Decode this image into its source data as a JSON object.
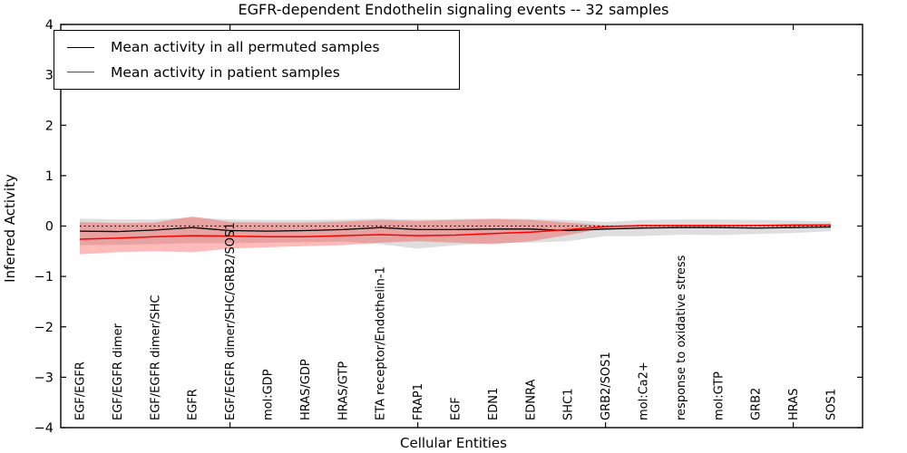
{
  "chart_data": {
    "type": "line",
    "title": "EGFR-dependent Endothelin signaling events -- 32 samples",
    "xlabel": "Cellular Entities",
    "ylabel": "Inferred Activity",
    "ylim": [
      -4,
      4
    ],
    "yticks": [
      4,
      3,
      2,
      1,
      0,
      -1,
      -2,
      -3,
      -4
    ],
    "grid": false,
    "legend_position": "upper-left",
    "zero_reference_line": 0,
    "categories": [
      "EGF/EGFR",
      "EGF/EGFR dimer",
      "EGF/EGFR dimer/SHC",
      "EGFR",
      "EGF/EGFR dimer/SHC/GRB2/SOS1",
      "mol:GDP",
      "HRAS/GDP",
      "HRAS/GTP",
      "ETA receptor/Endothelin-1",
      "FRAP1",
      "EGF",
      "EDN1",
      "EDNRA",
      "SHC1",
      "GRB2/SOS1",
      "mol:Ca2+",
      "response to oxidative stress",
      "mol:GTP",
      "GRB2",
      "HRAS",
      "SOS1"
    ],
    "x_tick_indexes": [
      4,
      9,
      14,
      19
    ],
    "series": [
      {
        "name": "Mean activity in all permuted samples",
        "color": "#000000",
        "values": [
          -0.1,
          -0.11,
          -0.08,
          -0.03,
          -0.09,
          -0.1,
          -0.09,
          -0.07,
          -0.03,
          -0.07,
          -0.07,
          -0.06,
          -0.06,
          -0.09,
          -0.06,
          -0.04,
          -0.03,
          -0.03,
          -0.04,
          -0.03,
          -0.02
        ]
      },
      {
        "name": "Mean activity in patient samples",
        "color": "#ff0000",
        "values": [
          -0.26,
          -0.24,
          -0.21,
          -0.19,
          -0.2,
          -0.21,
          -0.21,
          -0.19,
          -0.17,
          -0.19,
          -0.18,
          -0.15,
          -0.12,
          -0.07,
          -0.01,
          0.01,
          0.01,
          0.01,
          0.01,
          0.02,
          0.02
        ]
      }
    ],
    "bands": [
      {
        "name": "permuted-samples-std-band",
        "color": "rgba(0,0,0,0.13)",
        "upper": [
          0.15,
          0.13,
          0.13,
          0.17,
          0.13,
          0.12,
          0.12,
          0.13,
          0.15,
          0.13,
          0.14,
          0.15,
          0.14,
          0.12,
          0.08,
          0.12,
          0.13,
          0.13,
          0.12,
          0.11,
          0.09
        ],
        "lower": [
          -0.38,
          -0.37,
          -0.36,
          -0.34,
          -0.34,
          -0.33,
          -0.32,
          -0.31,
          -0.36,
          -0.45,
          -0.38,
          -0.34,
          -0.33,
          -0.3,
          -0.2,
          -0.2,
          -0.17,
          -0.18,
          -0.16,
          -0.14,
          -0.1
        ]
      },
      {
        "name": "patient-samples-std-band",
        "color": "rgba(255,0,0,0.27)",
        "upper": [
          0.08,
          0.06,
          0.07,
          0.19,
          0.08,
          0.07,
          0.07,
          0.09,
          0.12,
          0.1,
          0.12,
          0.14,
          0.12,
          0.07,
          0.01,
          0.02,
          0.02,
          0.02,
          0.02,
          0.03,
          0.04
        ],
        "lower": [
          -0.56,
          -0.52,
          -0.5,
          -0.52,
          -0.45,
          -0.42,
          -0.4,
          -0.38,
          -0.33,
          -0.3,
          -0.33,
          -0.36,
          -0.3,
          -0.18,
          -0.04,
          -0.02,
          -0.01,
          -0.01,
          -0.01,
          -0.01,
          0.0
        ]
      }
    ],
    "legend": [
      {
        "label": "Mean activity in all permuted samples",
        "color": "#000000"
      },
      {
        "label": "Mean activity in patient samples",
        "color": "#ff0000"
      }
    ]
  }
}
